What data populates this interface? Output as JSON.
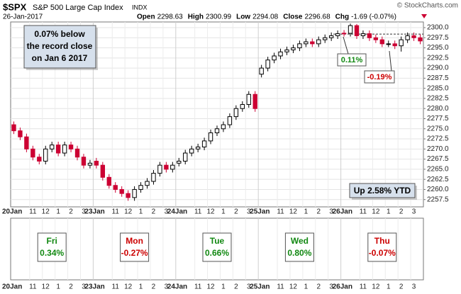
{
  "chart_data": {
    "type": "candlestick",
    "symbol": "$SPX",
    "name": "S&P 500 Large Cap Index",
    "exchange": "INDX",
    "date": "26-Jan-2017",
    "copyright": "© StockCharts.com",
    "quote": [
      {
        "label": "Open",
        "value": 2298.63
      },
      {
        "label": "High",
        "value": 2300.99
      },
      {
        "label": "Low",
        "value": 2294.08
      },
      {
        "label": "Close",
        "value": 2296.68
      },
      {
        "label": "Chg",
        "value": "-1.69 (-0.07%)"
      }
    ],
    "categories": [
      "20Jan",
      null,
      null,
      "11",
      null,
      "12",
      null,
      "1",
      null,
      "2",
      null,
      "3",
      null,
      "23Jan",
      null,
      null,
      "11",
      null,
      "12",
      null,
      "1",
      null,
      "2",
      null,
      "3",
      null,
      "24Jan",
      null,
      null,
      "11",
      null,
      "12",
      null,
      "1",
      null,
      "2",
      null,
      "3",
      null,
      "25Jan",
      null,
      null,
      "11",
      null,
      "12",
      null,
      "1",
      null,
      "2",
      null,
      "3",
      null,
      "26Jan",
      null,
      null,
      "11",
      null,
      "12",
      null,
      "1",
      null,
      "2",
      null,
      "3",
      null
    ],
    "open": [
      2276,
      2274.5,
      2273,
      2270,
      2268,
      2267,
      2270,
      2271,
      2269,
      2271,
      2270,
      2268,
      2266,
      2267,
      2266,
      2263,
      2261,
      2260,
      2259,
      2258,
      2260,
      2261,
      2262,
      2264,
      2266,
      2265,
      2266.5,
      2267,
      2269,
      2270,
      2270.5,
      2272,
      2274,
      2275,
      2276,
      2278,
      2280,
      2281,
      2283.5,
      2288.5,
      2290,
      2292,
      2293,
      2294,
      2294.5,
      2295,
      2296,
      2296.5,
      2296,
      2297,
      2297.5,
      2298,
      2298.63,
      2298.6,
      2300.5,
      2298,
      2298.5,
      2297.5,
      2297,
      2296,
      2296,
      2295.5,
      2297,
      2298,
      2297.5
    ],
    "high": [
      2276.8,
      2275.3,
      2273.8,
      2270.8,
      2268.8,
      2270.8,
      2271.8,
      2271.8,
      2271.8,
      2271.8,
      2270.8,
      2268.8,
      2267.3,
      2267.8,
      2266.8,
      2263.8,
      2261.8,
      2260.8,
      2259.8,
      2260.8,
      2261.8,
      2262.8,
      2264.8,
      2266.8,
      2266.8,
      2266.8,
      2267.8,
      2269.8,
      2270.8,
      2271.3,
      2272.8,
      2274.8,
      2275.8,
      2276.8,
      2278.8,
      2280.8,
      2281.8,
      2284.3,
      2284.3,
      2290.8,
      2292.8,
      2293.8,
      2294.8,
      2295.3,
      2295.8,
      2296.8,
      2297.3,
      2297.3,
      2297.8,
      2298.3,
      2298.8,
      2299.3,
      2299.4,
      2300.99,
      2300.9,
      2299.3,
      2299.3,
      2298.3,
      2297.8,
      2296.8,
      2296.8,
      2297.8,
      2298.8,
      2298.8,
      2298.3
    ],
    "low": [
      2273.7,
      2272.2,
      2269.2,
      2267.2,
      2266.2,
      2266.2,
      2269.2,
      2268.2,
      2268.2,
      2269.2,
      2267.2,
      2265.2,
      2265.2,
      2265.2,
      2262.2,
      2260.2,
      2259.2,
      2258.2,
      2257.2,
      2257.2,
      2259.2,
      2260.2,
      2261.2,
      2263.2,
      2264.2,
      2264.2,
      2265.7,
      2266.2,
      2268.2,
      2269.2,
      2269.7,
      2271.2,
      2273.2,
      2274.2,
      2275.2,
      2277.2,
      2279.2,
      2280.2,
      2279.2,
      2287.7,
      2289.2,
      2291.2,
      2292.2,
      2293.2,
      2293.7,
      2294.2,
      2295.2,
      2295.2,
      2295.2,
      2296.2,
      2296.7,
      2297.2,
      2297.8,
      2297.8,
      2297.2,
      2297.2,
      2296.7,
      2296.2,
      2295.2,
      2295.2,
      2294.7,
      2294.08,
      2296.2,
      2296.7,
      2295.9
    ],
    "close": [
      2274.5,
      2273,
      2270,
      2268,
      2267,
      2270,
      2271,
      2269,
      2271,
      2270,
      2268,
      2266,
      2266.5,
      2266,
      2263,
      2261,
      2260,
      2259,
      2258,
      2260,
      2261,
      2262,
      2264,
      2266,
      2265,
      2266,
      2267,
      2269,
      2270,
      2270.5,
      2272,
      2274,
      2275,
      2276,
      2278,
      2280,
      2281,
      2283.5,
      2280,
      2290,
      2292,
      2293,
      2294,
      2294.5,
      2295,
      2296,
      2296.5,
      2296,
      2297,
      2297.5,
      2298,
      2298.5,
      2298.6,
      2300.5,
      2298,
      2298.5,
      2297.5,
      2297,
      2296,
      2296,
      2295.5,
      2297,
      2298,
      2297.5,
      2296.7
    ],
    "up_color": "#000000",
    "down_color": "#cc0033",
    "ylim": [
      2255.7,
      2301.4
    ],
    "yticks": [
      {
        "value": 2257.5,
        "label": "2257.5"
      },
      {
        "value": 2260,
        "label": "2260.0"
      },
      {
        "value": 2262.5,
        "label": "2262.5"
      },
      {
        "value": 2265,
        "label": "2265.0"
      },
      {
        "value": 2267.5,
        "label": "2267.5"
      },
      {
        "value": 2270,
        "label": "2270.0"
      },
      {
        "value": 2272.5,
        "label": "2272.5"
      },
      {
        "value": 2275,
        "label": "2275.0"
      },
      {
        "value": 2277.5,
        "label": "2277.5"
      },
      {
        "value": 2280,
        "label": "2280.0"
      },
      {
        "value": 2282.5,
        "label": "2282.5"
      },
      {
        "value": 2285,
        "label": "2285.0"
      },
      {
        "value": 2287.5,
        "label": "2287.5"
      },
      {
        "value": 2290,
        "label": "2290.0"
      },
      {
        "value": 2292.5,
        "label": "2292.5"
      },
      {
        "value": 2295,
        "label": "2295.0"
      },
      {
        "value": 2297.5,
        "label": "2297.5"
      },
      {
        "value": 2300,
        "label": "2300.0"
      }
    ],
    "grid": true,
    "record_line": 2298.4,
    "annotations": {
      "record": [
        "0.07% below",
        "the record close",
        "on Jan 6 2017"
      ],
      "peak": "0.11%",
      "dip": "-0.19%",
      "ytd": "Up 2.58% YTD"
    },
    "daily_boxes": [
      {
        "day": "Fri",
        "change": "0.34%",
        "color": "#118811"
      },
      {
        "day": "Mon",
        "change": "-0.27%",
        "color": "#cc0000"
      },
      {
        "day": "Tue",
        "change": "0.66%",
        "color": "#118811"
      },
      {
        "day": "Wed",
        "change": "0.80%",
        "color": "#118811"
      },
      {
        "day": "Thu",
        "change": "-0.07%",
        "color": "#cc0000"
      }
    ]
  }
}
